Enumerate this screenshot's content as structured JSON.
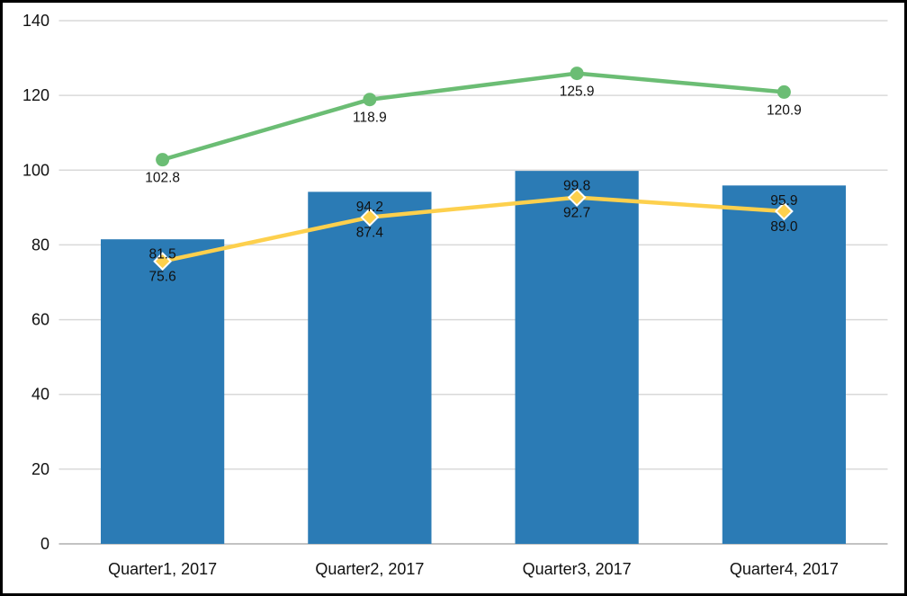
{
  "chart": {
    "background": "#ffffff",
    "border_color": "#000000",
    "gridline_color": "#d9d9d9",
    "axis_line_color": "#c3c3c3",
    "text_color": "#111111"
  },
  "chart_data": {
    "type": "combo",
    "title": "",
    "xlabel": "",
    "ylabel": "",
    "categories": [
      "Quarter1, 2017",
      "Quarter2, 2017",
      "Quarter3, 2017",
      "Quarter4, 2017"
    ],
    "series": [
      {
        "name": "bars",
        "type": "bar",
        "color": "#2b7bb5",
        "values": [
          81.5,
          94.2,
          99.8,
          95.9
        ],
        "labels": [
          "81.5",
          "94.2",
          "99.8",
          "95.9"
        ]
      },
      {
        "name": "green-line",
        "type": "line",
        "color": "#6bbd74",
        "marker": "circle",
        "values": [
          102.8,
          118.9,
          125.9,
          120.9
        ],
        "labels": [
          "102.8",
          "118.9",
          "125.9",
          "120.9"
        ]
      },
      {
        "name": "yellow-line",
        "type": "line",
        "color": "#fdd04d",
        "marker": "diamond",
        "marker_border": "#ffffff",
        "values": [
          75.6,
          87.4,
          92.7,
          89.0
        ],
        "labels": [
          "75.6",
          "87.4",
          "92.7",
          "89.0"
        ]
      }
    ],
    "ylim": [
      0,
      140
    ],
    "yticks": [
      0,
      20,
      40,
      60,
      80,
      100,
      120,
      140
    ],
    "grid": true,
    "legend": "none",
    "data_labels": true
  }
}
